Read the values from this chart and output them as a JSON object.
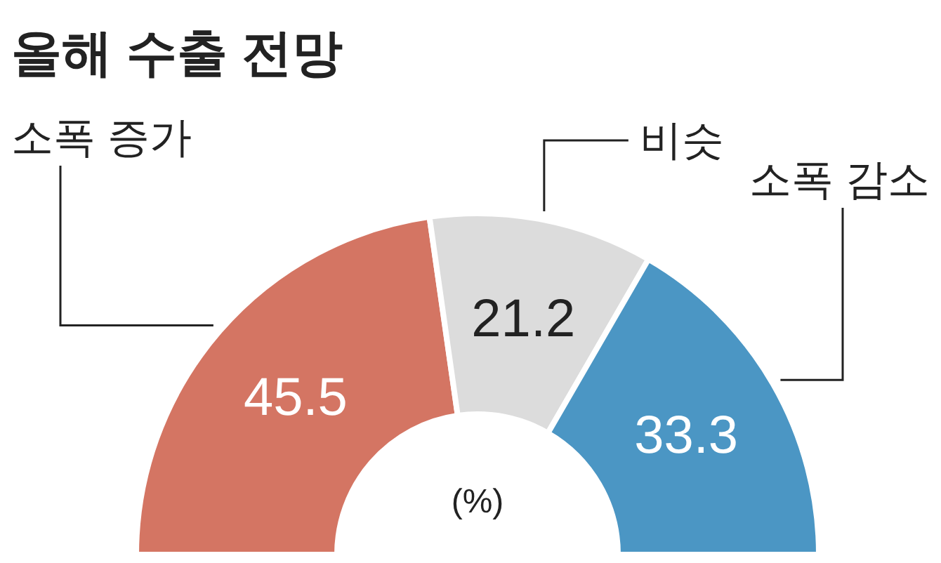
{
  "chart_data": {
    "type": "donut",
    "title": "올해 수출 전망",
    "categories": [
      "소폭 증가",
      "비슷",
      "소폭 감소"
    ],
    "values": [
      45.5,
      21.2,
      33.3
    ],
    "colors": [
      "#d47563",
      "#dcdcdc",
      "#4b96c4"
    ],
    "data_labels": true,
    "annotations": [
      "(%)"
    ]
  }
}
